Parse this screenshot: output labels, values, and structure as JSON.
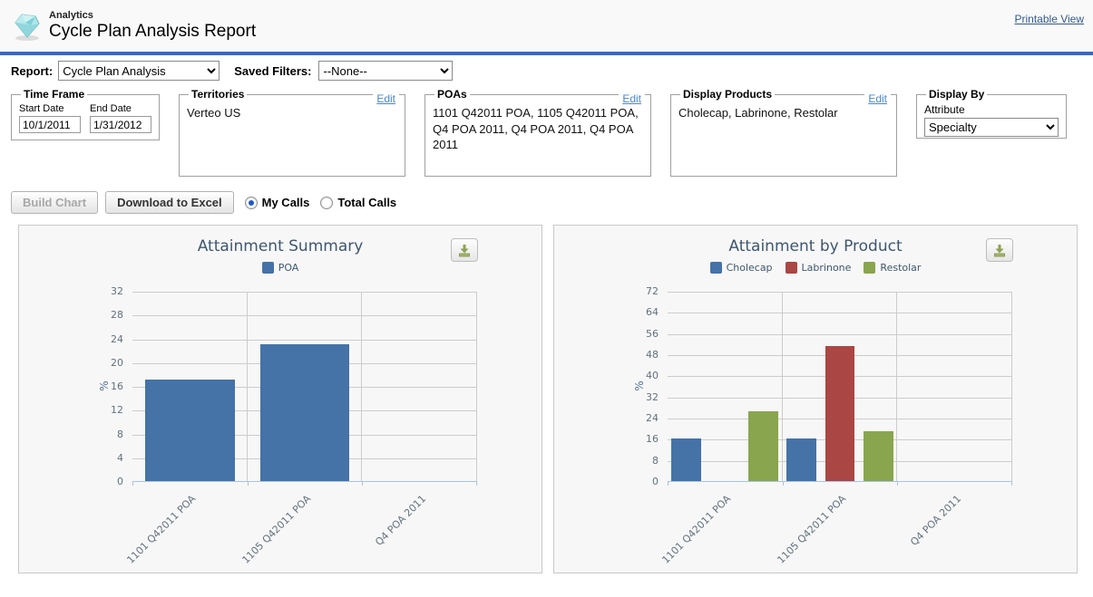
{
  "header": {
    "app_label": "Analytics",
    "title": "Cycle Plan Analysis Report",
    "printable_view": "Printable View"
  },
  "toolbar": {
    "report_label": "Report:",
    "report_value": "Cycle Plan Analysis",
    "saved_filters_label": "Saved Filters:",
    "saved_filters_value": "--None--"
  },
  "filters": {
    "time_frame": {
      "legend": "Time Frame",
      "start_date_label": "Start Date",
      "start_date_value": "10/1/2011",
      "end_date_label": "End Date",
      "end_date_value": "1/31/2012"
    },
    "territories": {
      "legend": "Territories",
      "edit_label": "Edit",
      "value": "Verteo US"
    },
    "poas": {
      "legend": "POAs",
      "edit_label": "Edit",
      "value": "1101 Q42011 POA, 1105 Q42011 POA, Q4 POA 2011, Q4 POA 2011, Q4 POA 2011"
    },
    "display_products": {
      "legend": "Display Products",
      "edit_label": "Edit",
      "value": "Cholecap, Labrinone, Restolar"
    },
    "display_by": {
      "legend": "Display By",
      "attribute_label": "Attribute",
      "value": "Specialty"
    }
  },
  "actions": {
    "build_chart_label": "Build Chart",
    "download_excel_label": "Download to Excel",
    "radio_my_calls": "My Calls",
    "radio_total_calls": "Total Calls",
    "selected_radio": "My Calls"
  },
  "colors": {
    "divider_blue": "#3a66c4",
    "series_blue": "#4572a7",
    "series_red": "#aa4643",
    "series_green": "#89a54e",
    "gridline": "#cccccc",
    "axis_line": "#a9c4dd"
  },
  "chart_data": [
    {
      "type": "bar",
      "title": "Attainment Summary",
      "ylabel": "%",
      "ylim": [
        0,
        32
      ],
      "yticks": [
        0,
        4,
        8,
        12,
        16,
        20,
        24,
        28,
        32
      ],
      "grid": true,
      "legend_position": "top",
      "categories": [
        "1101 Q42011 POA",
        "1105 Q42011 POA",
        "Q4 POA 2011"
      ],
      "series": [
        {
          "name": "POA",
          "color": "#4572a7",
          "values": [
            17,
            23,
            0
          ]
        }
      ]
    },
    {
      "type": "bar",
      "title": "Attainment by Product",
      "ylabel": "%",
      "ylim": [
        0,
        72
      ],
      "yticks": [
        0,
        8,
        16,
        24,
        32,
        40,
        48,
        56,
        64,
        72
      ],
      "grid": true,
      "legend_position": "top",
      "categories": [
        "1101 Q42011 POA",
        "1105 Q42011 POA",
        "Q4 POA 2011"
      ],
      "series": [
        {
          "name": "Cholecap",
          "color": "#4572a7",
          "values": [
            16,
            16,
            0
          ]
        },
        {
          "name": "Labrinone",
          "color": "#aa4643",
          "values": [
            0,
            51,
            0
          ]
        },
        {
          "name": "Restolar",
          "color": "#89a54e",
          "values": [
            26.5,
            19,
            0
          ]
        }
      ]
    }
  ]
}
